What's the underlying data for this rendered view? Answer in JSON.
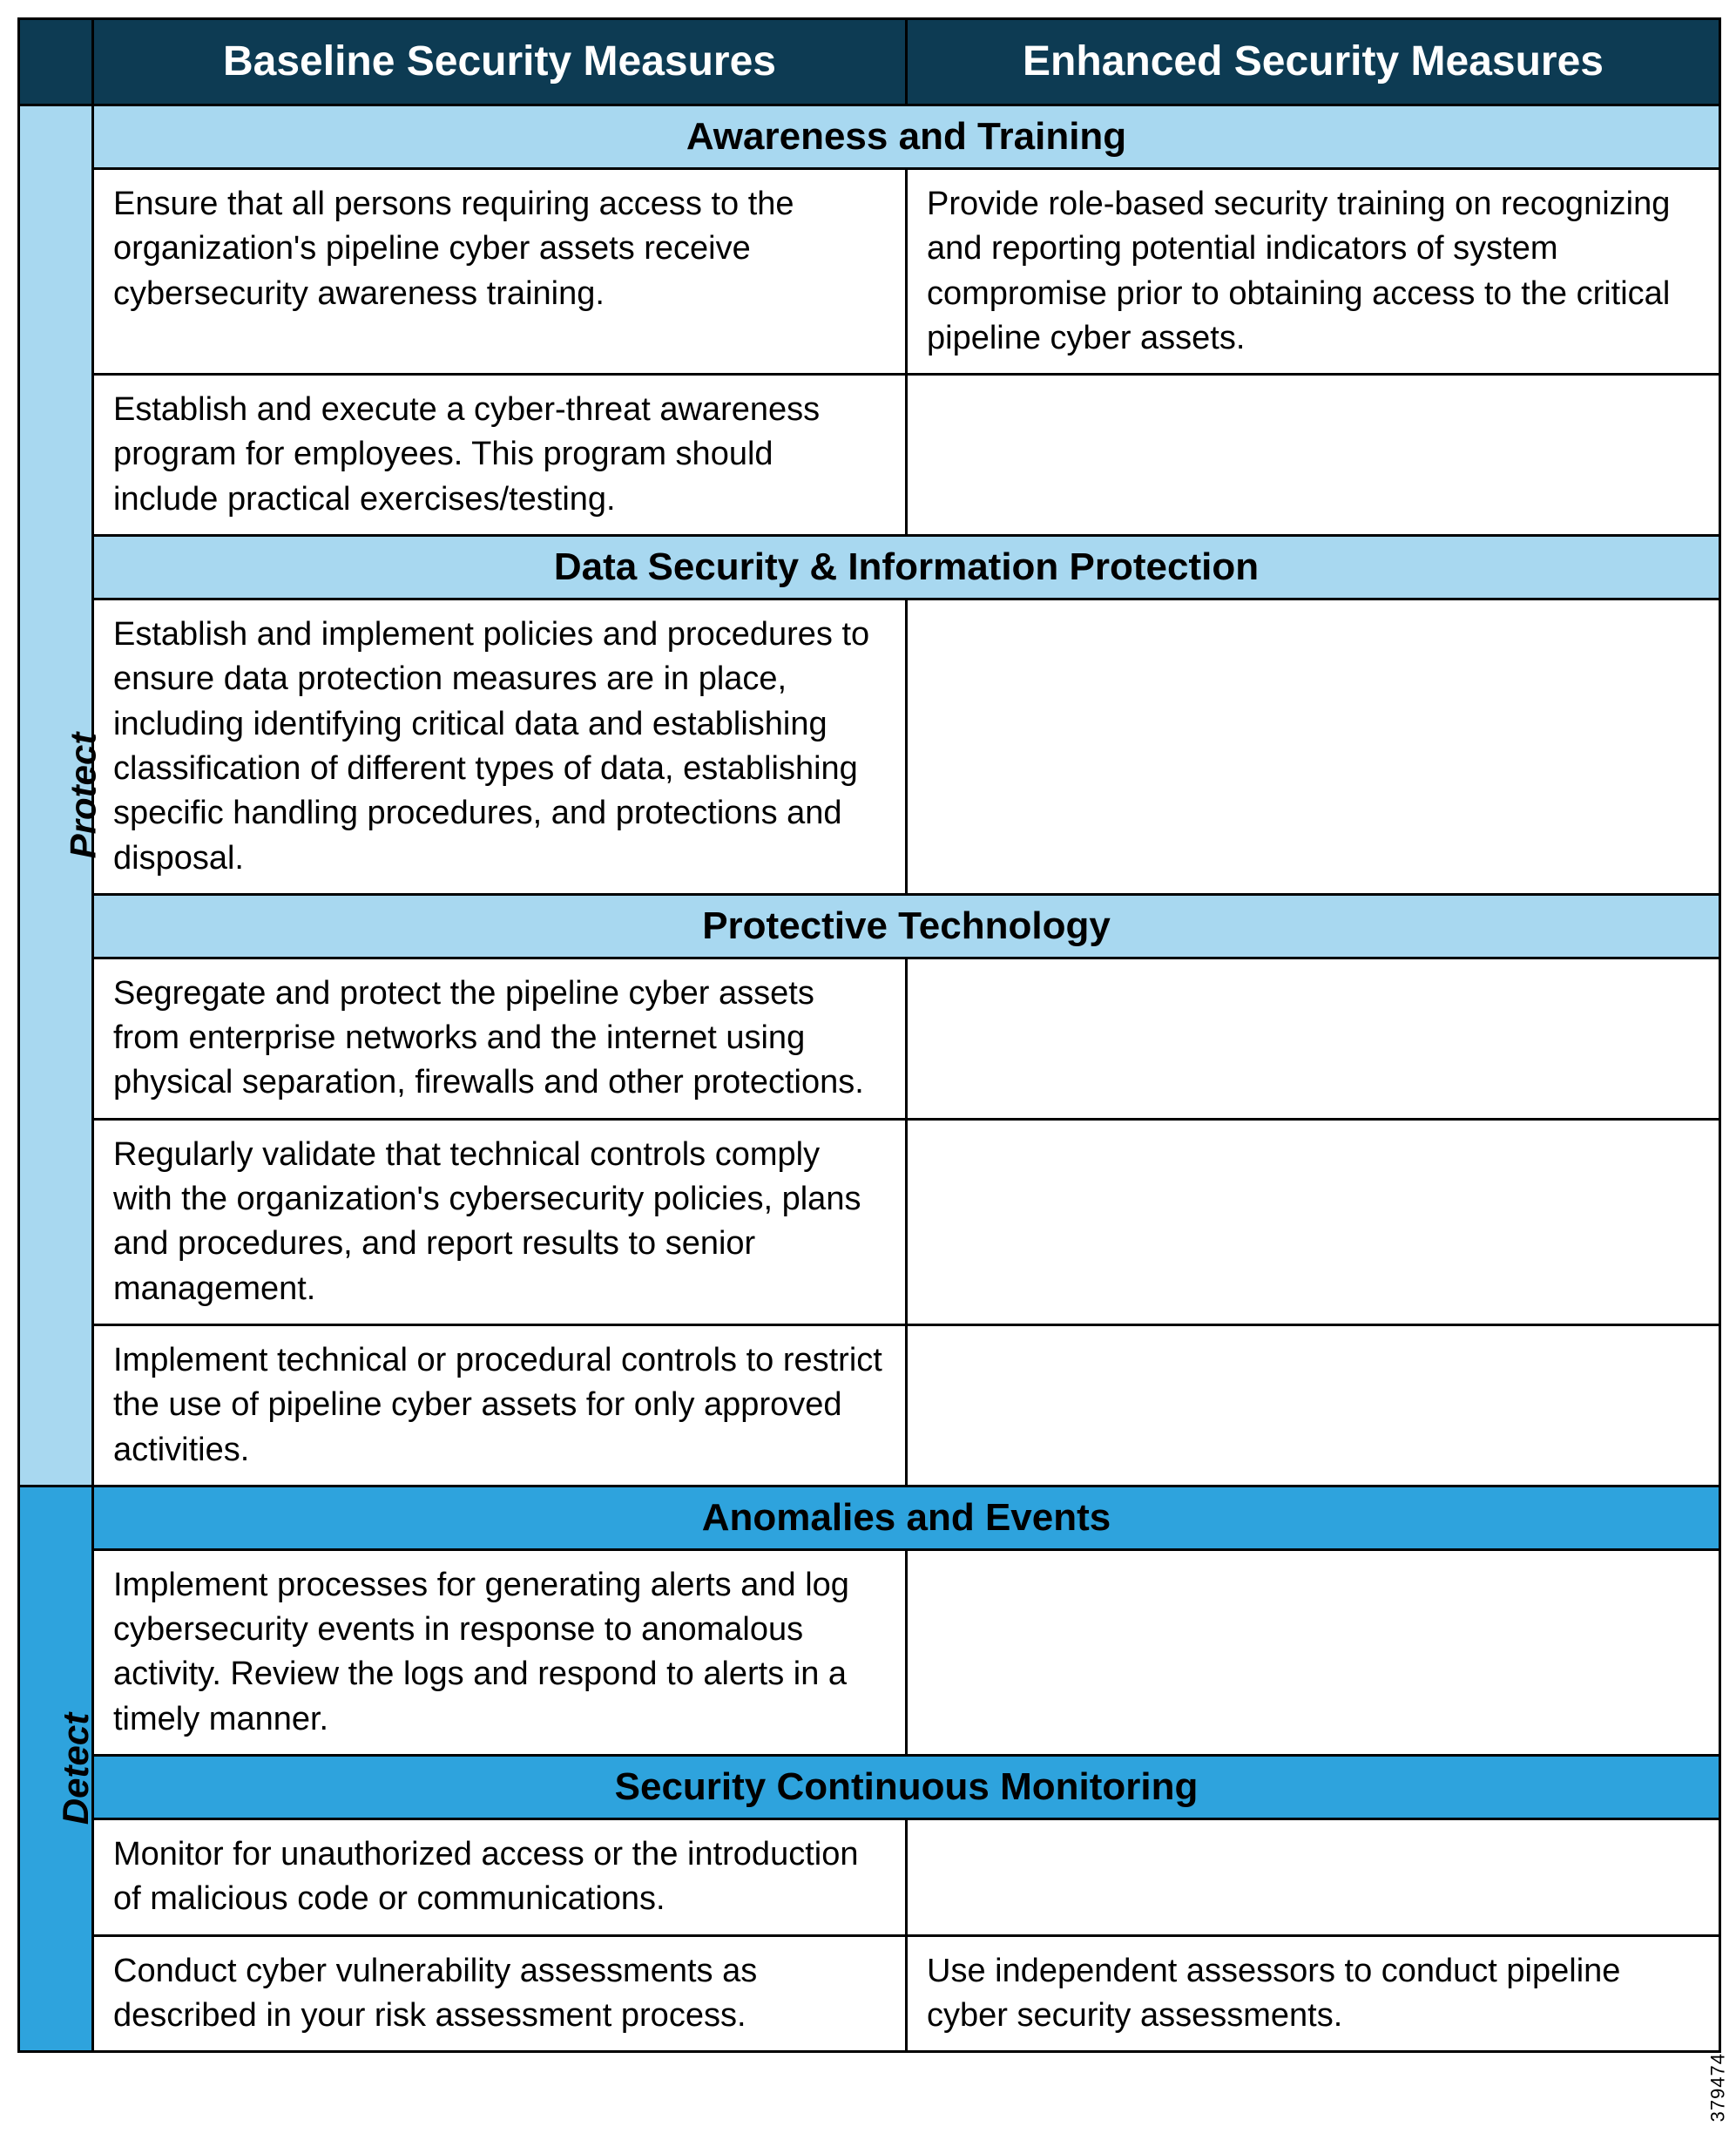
{
  "colors": {
    "header_bg": "#0d3b53",
    "header_text": "#ffffff",
    "protect_bg": "#a8d8f0",
    "detect_bg": "#2ea3dd",
    "border": "#000000",
    "cell_bg": "#ffffff",
    "text": "#000000"
  },
  "header": {
    "baseline": "Baseline Security Measures",
    "enhanced": "Enhanced Security Measures"
  },
  "side_code": "379474",
  "groups": [
    {
      "label": "Protect",
      "bg_key": "protect_bg",
      "sections": [
        {
          "title": "Awareness and Training",
          "rows": [
            {
              "baseline": "Ensure that all persons requiring access to the organization's pipeline cyber assets receive cybersecurity awareness training.",
              "enhanced": "Provide role-based security training on recognizing and reporting potential indicators of system compromise prior to obtaining access to the critical pipeline cyber assets."
            },
            {
              "baseline": "Establish and execute a cyber-threat awareness program for employees. This program should include practical exercises/testing.",
              "enhanced": ""
            }
          ]
        },
        {
          "title": "Data Security & Information Protection",
          "rows": [
            {
              "baseline": "Establish and implement policies and procedures to ensure data protection measures are in place, including identifying critical data and establishing classification of different types of data, establishing specific handling procedures, and protections and disposal.",
              "enhanced": ""
            }
          ]
        },
        {
          "title": "Protective Technology",
          "rows": [
            {
              "baseline": "Segregate and protect the pipeline cyber assets from enterprise networks and the internet using physical separation, firewalls and other protections.",
              "enhanced": ""
            },
            {
              "baseline": "Regularly validate that technical controls comply with the organization's cybersecurity policies, plans and procedures, and report results to senior management.",
              "enhanced": ""
            },
            {
              "baseline": "Implement technical or procedural controls to restrict the use of pipeline cyber assets for only approved activities.",
              "enhanced": ""
            }
          ]
        }
      ]
    },
    {
      "label": "Detect",
      "bg_key": "detect_bg",
      "sections": [
        {
          "title": "Anomalies and Events",
          "rows": [
            {
              "baseline": "Implement processes for generating alerts and log cybersecurity events in response to anomalous activity. Review the logs and respond to alerts in a timely manner.",
              "enhanced": ""
            }
          ]
        },
        {
          "title": "Security Continuous Monitoring",
          "rows": [
            {
              "baseline": "Monitor for unauthorized access or the introduction of malicious code or communications.",
              "enhanced": ""
            },
            {
              "baseline": "Conduct cyber vulnerability assessments as described in your risk assessment process.",
              "enhanced": "Use independent assessors to conduct pipeline cyber security assessments."
            }
          ]
        }
      ]
    }
  ]
}
